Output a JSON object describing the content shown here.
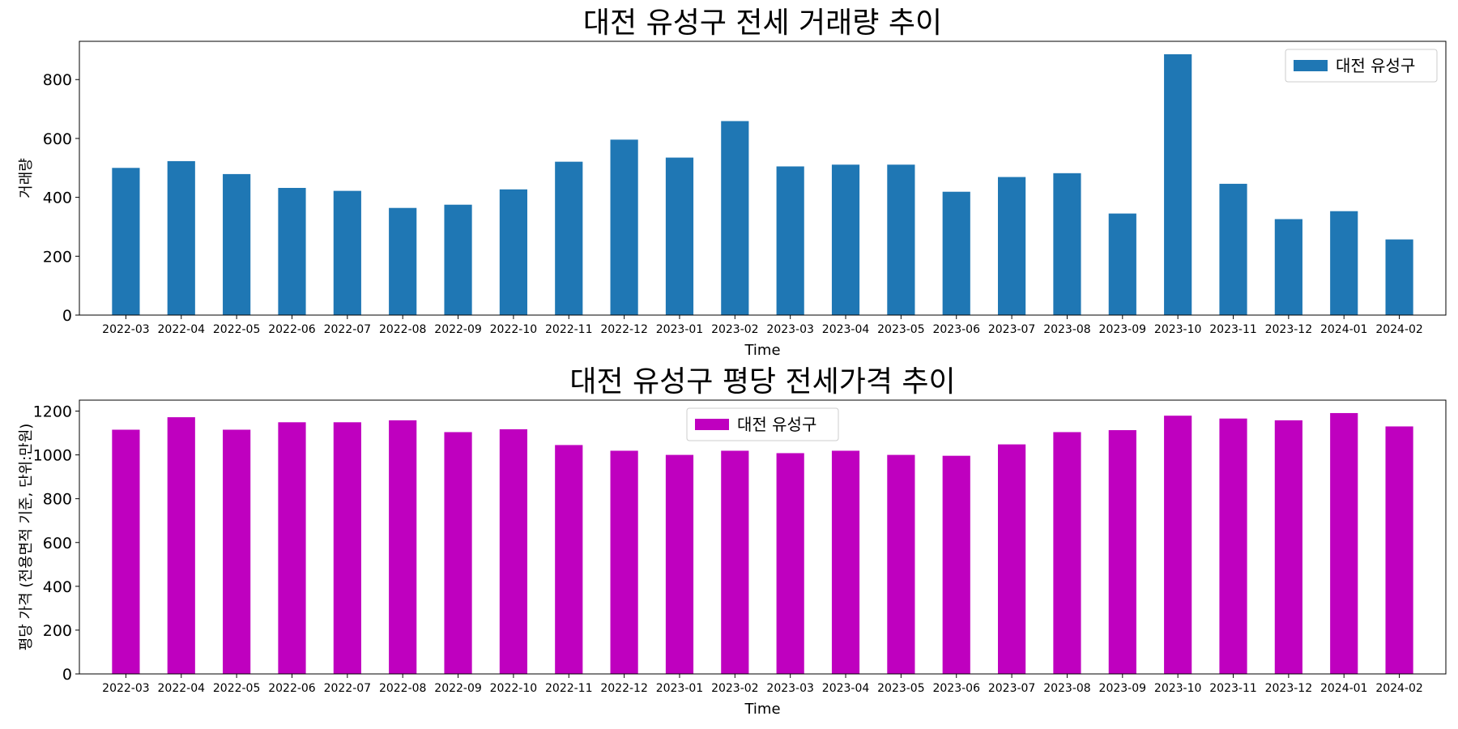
{
  "chart_data": [
    {
      "type": "bar",
      "title": "대전 유성구 전세 거래량 추이",
      "xlabel": "Time",
      "ylabel": "거래량",
      "ylim": [
        0,
        930
      ],
      "yticks": [
        0,
        200,
        400,
        600,
        800
      ],
      "legend_position": "upper right",
      "grid": false,
      "categories": [
        "2022-03",
        "2022-04",
        "2022-05",
        "2022-06",
        "2022-07",
        "2022-08",
        "2022-09",
        "2022-10",
        "2022-11",
        "2022-12",
        "2023-01",
        "2023-02",
        "2023-03",
        "2023-04",
        "2023-05",
        "2023-06",
        "2023-07",
        "2023-08",
        "2023-09",
        "2023-10",
        "2023-11",
        "2023-12",
        "2024-01",
        "2024-02"
      ],
      "series": [
        {
          "name": "대전 유성구",
          "color": "#1f77b4",
          "values": [
            500,
            523,
            479,
            432,
            422,
            364,
            375,
            427,
            521,
            596,
            535,
            659,
            505,
            511,
            511,
            419,
            469,
            482,
            345,
            886,
            446,
            326,
            353,
            257
          ]
        }
      ]
    },
    {
      "type": "bar",
      "title": "대전 유성구 평당 전세가격 추이",
      "xlabel": "Time",
      "ylabel": "평당 가격 (전용면적 기준, 단위:만원)",
      "ylim": [
        0,
        1250
      ],
      "yticks": [
        0,
        200,
        400,
        600,
        800,
        1000,
        1200
      ],
      "legend_position": "upper center",
      "grid": false,
      "categories": [
        "2022-03",
        "2022-04",
        "2022-05",
        "2022-06",
        "2022-07",
        "2022-08",
        "2022-09",
        "2022-10",
        "2022-11",
        "2022-12",
        "2023-01",
        "2023-02",
        "2023-03",
        "2023-04",
        "2023-05",
        "2023-06",
        "2023-07",
        "2023-08",
        "2023-09",
        "2023-10",
        "2023-11",
        "2023-12",
        "2024-01",
        "2024-02"
      ],
      "series": [
        {
          "name": "대전 유성구",
          "color": "#bf00bf",
          "values": [
            1115,
            1172,
            1115,
            1149,
            1149,
            1158,
            1104,
            1117,
            1045,
            1019,
            1000,
            1019,
            1008,
            1019,
            1000,
            996,
            1048,
            1104,
            1113,
            1179,
            1166,
            1158,
            1191,
            1130
          ]
        }
      ]
    }
  ]
}
